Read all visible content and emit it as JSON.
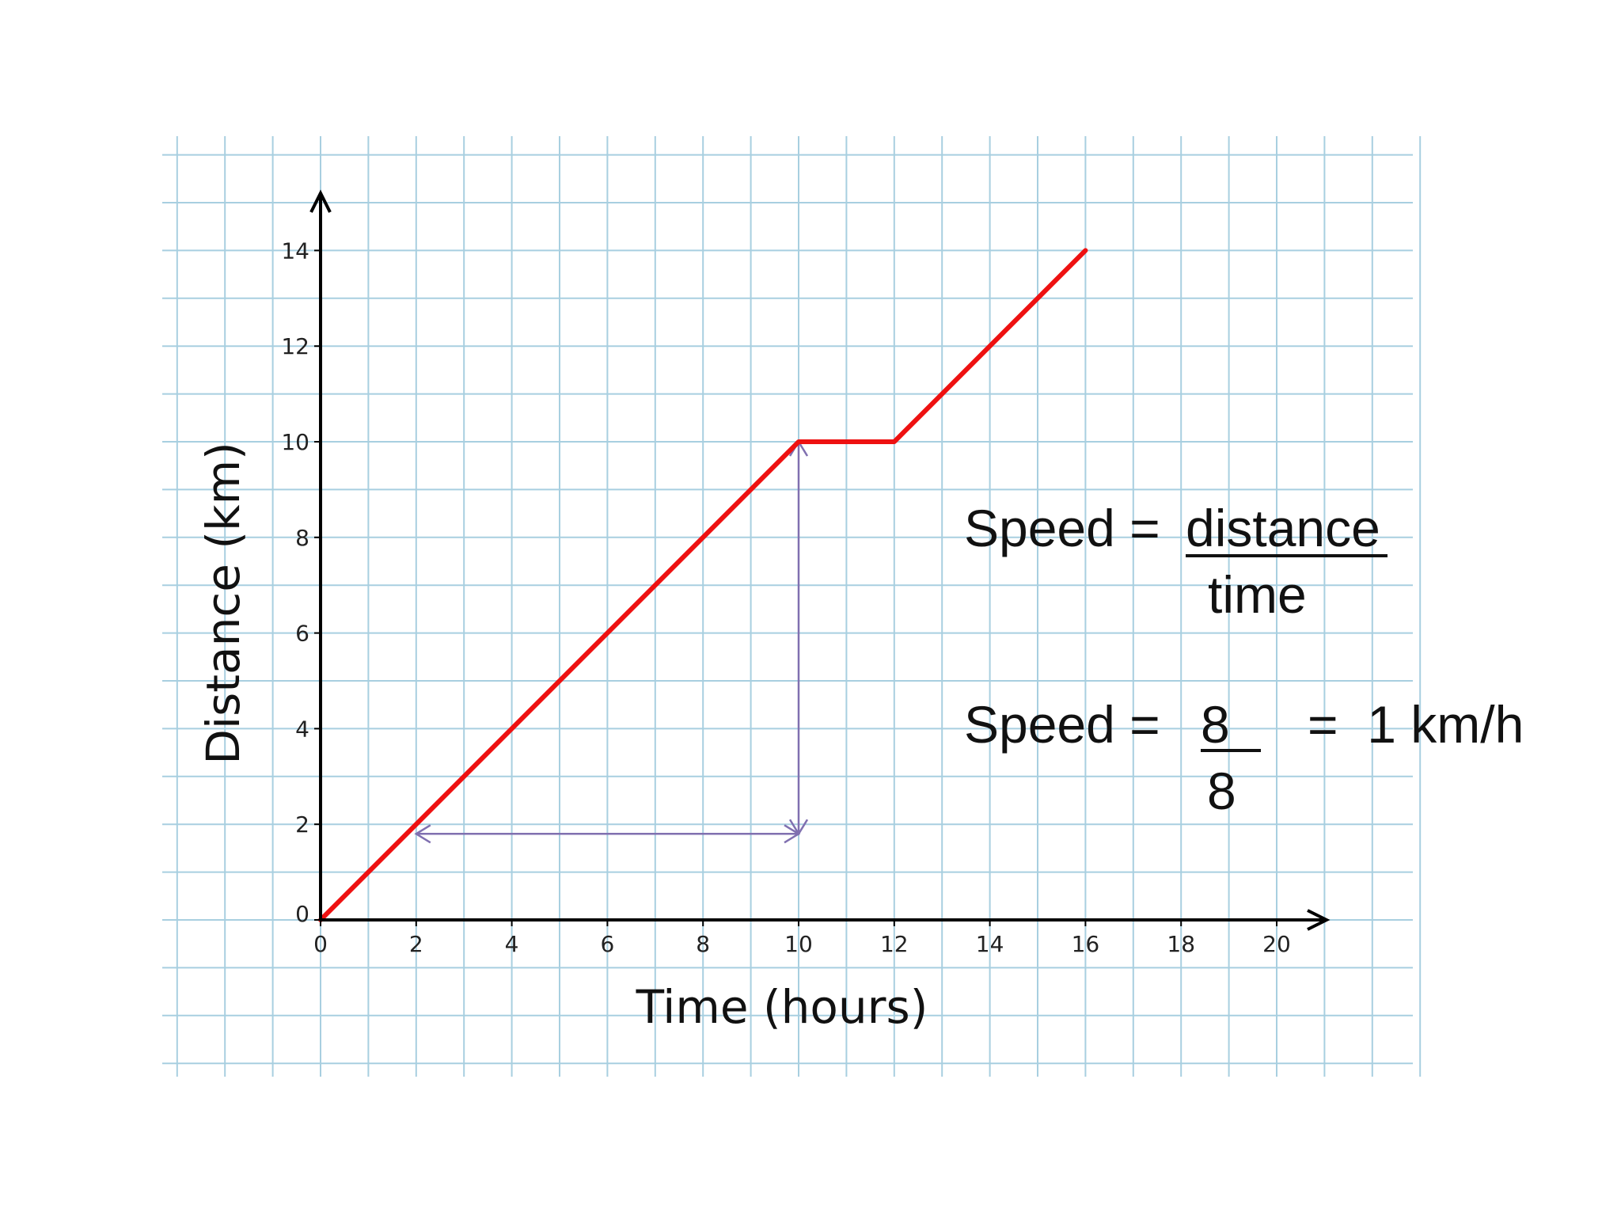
{
  "chart_data": {
    "type": "line",
    "xlabel": "Time (hours)",
    "ylabel": "Distance (km)",
    "xlim": [
      0,
      21
    ],
    "ylim": [
      0,
      15
    ],
    "x_ticks": [
      0,
      2,
      4,
      6,
      8,
      10,
      12,
      14,
      16,
      18,
      20
    ],
    "y_ticks": [
      0,
      2,
      4,
      6,
      8,
      10,
      12,
      14
    ],
    "grid": true,
    "series": [
      {
        "x": [
          0,
          10,
          12,
          16
        ],
        "y": [
          0,
          10,
          10,
          14
        ]
      }
    ],
    "annotations": {
      "horizontal_arrow": {
        "from": [
          2,
          1.8
        ],
        "to": [
          10,
          1.8
        ]
      },
      "vertical_arrow": {
        "from": [
          10,
          1.8
        ],
        "to": [
          10,
          10
        ]
      }
    },
    "colors": {
      "line": "#ee1111",
      "grid": "#a8cfe0",
      "arrows": "#8070b0",
      "axes": "#000000"
    }
  },
  "formula": {
    "line1_lhs": "Speed = ",
    "line1_num": "distance",
    "line1_den": "time",
    "line2_lhs": "Speed = ",
    "line2_num": "8",
    "line2_den": "8",
    "line2_rhs": "=  1 km/h"
  }
}
